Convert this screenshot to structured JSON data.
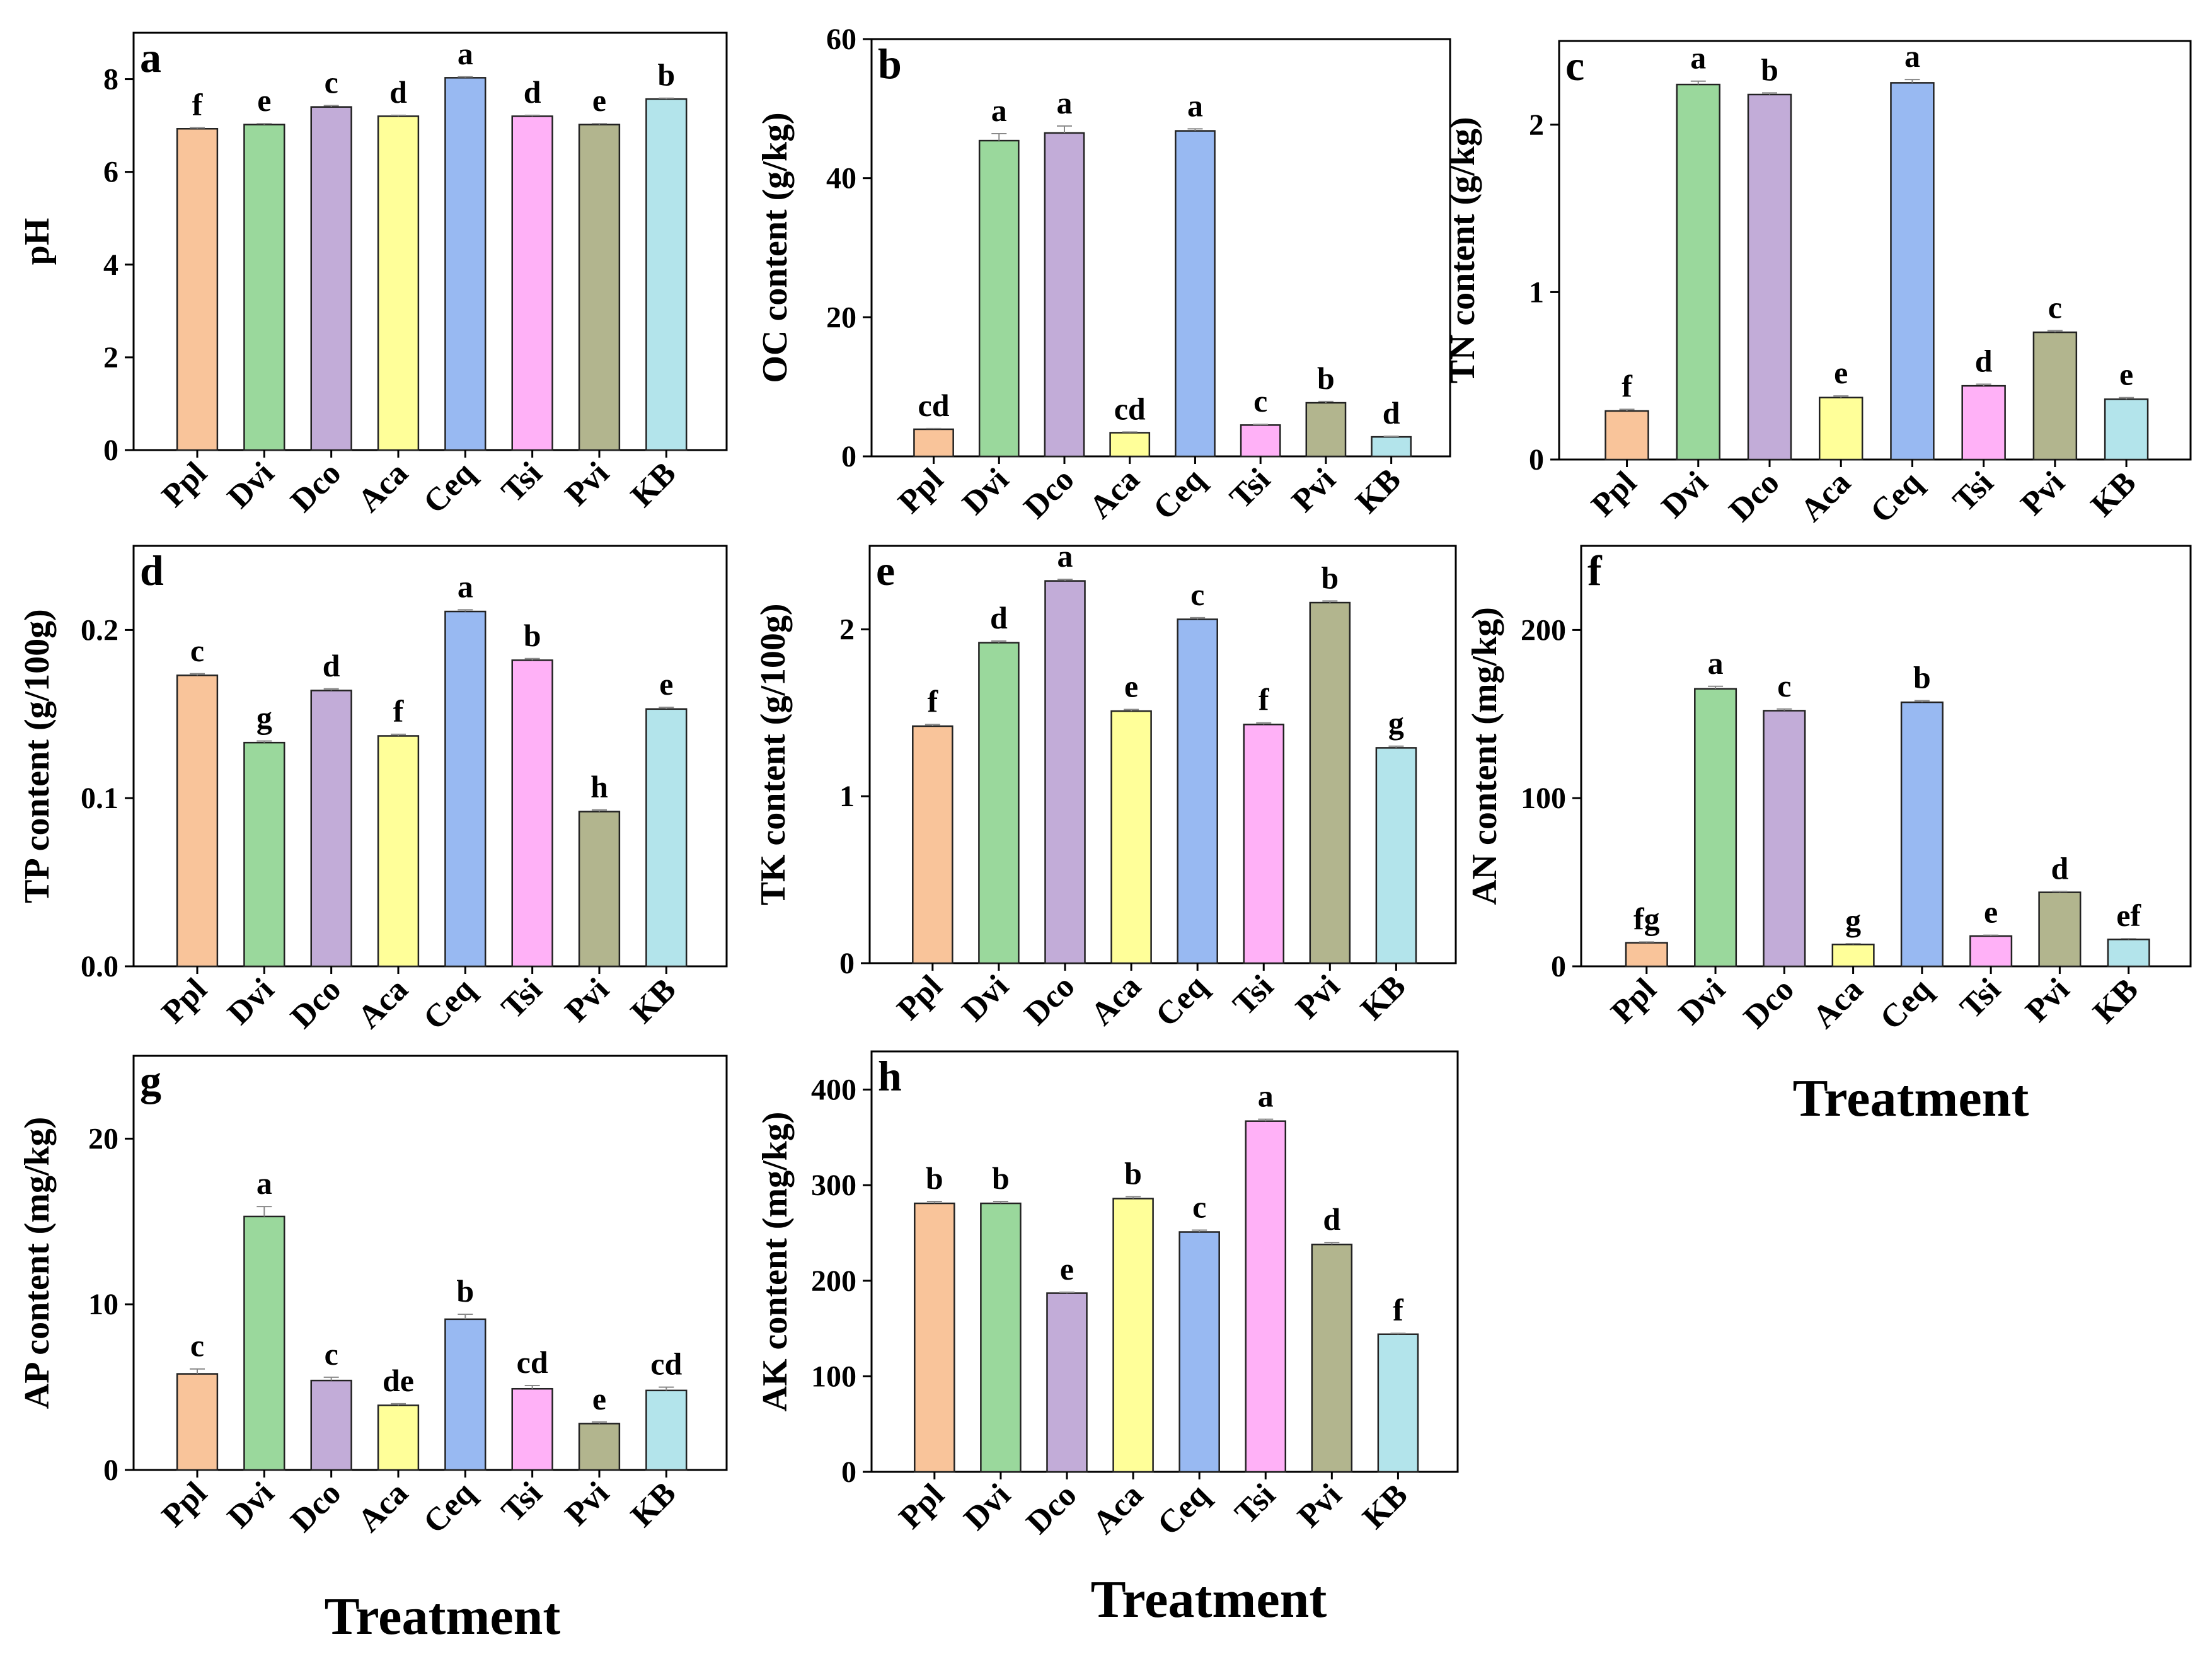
{
  "figure": {
    "x_axis_title": "Treatment",
    "colors": [
      "#f9c49a",
      "#9ad89c",
      "#c2acd8",
      "#ffff99",
      "#98b9f2",
      "#ffb1f7",
      "#b2b58e",
      "#b3e4eb"
    ]
  },
  "chart_data": [
    {
      "panel": "a",
      "type": "bar",
      "ylabel": "pH",
      "ylim": [
        0,
        9
      ],
      "yticks": [
        "0",
        "2",
        "4",
        "6",
        "8"
      ],
      "ytick_values": [
        0,
        2,
        4,
        6,
        8
      ],
      "categories": [
        "Ppl",
        "Dvi",
        "Dco",
        "Aca",
        "Ceq",
        "Tsi",
        "Pvi",
        "KB"
      ],
      "values": [
        6.93,
        7.02,
        7.4,
        7.2,
        8.03,
        7.2,
        7.02,
        7.57
      ],
      "errors": [
        0.02,
        0.02,
        0.03,
        0.02,
        0.02,
        0.02,
        0.02,
        0.02
      ],
      "letters": [
        "f",
        "e",
        "c",
        "d",
        "a",
        "d",
        "e",
        "b"
      ],
      "show_xlabel": false
    },
    {
      "panel": "b",
      "type": "bar",
      "ylabel": "OC content (g/kg)",
      "ylim": [
        0,
        60
      ],
      "yticks": [
        "0",
        "20",
        "40",
        "60"
      ],
      "ytick_values": [
        0,
        20,
        40,
        60
      ],
      "categories": [
        "Ppl",
        "Dvi",
        "Dco",
        "Aca",
        "Ceq",
        "Tsi",
        "Pvi",
        "KB"
      ],
      "values": [
        3.9,
        45.4,
        46.5,
        3.4,
        46.8,
        4.5,
        7.7,
        2.8
      ],
      "errors": [
        0.1,
        1.0,
        1.0,
        0.1,
        0.3,
        0.1,
        0.2,
        0.1
      ],
      "letters": [
        "cd",
        "a",
        "a",
        "cd",
        "a",
        "c",
        "b",
        "d"
      ],
      "show_xlabel": false
    },
    {
      "panel": "c",
      "type": "bar",
      "ylabel": "TN content (g/kg)",
      "ylim": [
        0,
        2.5
      ],
      "yticks": [
        "0",
        "1",
        "2"
      ],
      "ytick_values": [
        0,
        1,
        2
      ],
      "categories": [
        "Ppl",
        "Dvi",
        "Dco",
        "Aca",
        "Ceq",
        "Tsi",
        "Pvi",
        "KB"
      ],
      "values": [
        0.29,
        2.24,
        2.18,
        0.37,
        2.25,
        0.44,
        0.76,
        0.36
      ],
      "errors": [
        0.01,
        0.02,
        0.01,
        0.01,
        0.02,
        0.01,
        0.01,
        0.01
      ],
      "letters": [
        "f",
        "a",
        "b",
        "e",
        "a",
        "d",
        "c",
        "e"
      ],
      "show_xlabel": true
    },
    {
      "panel": "d",
      "type": "bar",
      "ylabel": "TP content (g/100g)",
      "ylim": [
        0,
        0.25
      ],
      "yticks": [
        "0.0",
        "0.1",
        "0.2"
      ],
      "ytick_values": [
        0,
        0.1,
        0.2
      ],
      "categories": [
        "Ppl",
        "Dvi",
        "Dco",
        "Aca",
        "Ceq",
        "Tsi",
        "Pvi",
        "KB"
      ],
      "values": [
        0.173,
        0.133,
        0.164,
        0.137,
        0.211,
        0.182,
        0.092,
        0.153
      ],
      "errors": [
        0.001,
        0.001,
        0.001,
        0.001,
        0.001,
        0.001,
        0.001,
        0.001
      ],
      "letters": [
        "c",
        "g",
        "d",
        "f",
        "a",
        "b",
        "h",
        "e"
      ],
      "show_xlabel": false
    },
    {
      "panel": "e",
      "type": "bar",
      "ylabel": "TK content (g/100g)",
      "ylim": [
        0,
        2.5
      ],
      "yticks": [
        "0",
        "1",
        "2"
      ],
      "ytick_values": [
        0,
        1,
        2
      ],
      "categories": [
        "Ppl",
        "Dvi",
        "Dco",
        "Aca",
        "Ceq",
        "Tsi",
        "Pvi",
        "KB"
      ],
      "values": [
        1.42,
        1.92,
        2.29,
        1.51,
        2.06,
        1.43,
        2.16,
        1.29
      ],
      "errors": [
        0.01,
        0.01,
        0.01,
        0.01,
        0.01,
        0.01,
        0.01,
        0.01
      ],
      "letters": [
        "f",
        "d",
        "a",
        "e",
        "c",
        "f",
        "b",
        "g"
      ],
      "show_xlabel": false
    },
    {
      "panel": "f",
      "type": "bar",
      "ylabel": "AN content (mg/kg)",
      "ylim": [
        0,
        250
      ],
      "yticks": [
        "0",
        "100",
        "200"
      ],
      "ytick_values": [
        0,
        100,
        200
      ],
      "categories": [
        "Ppl",
        "Dvi",
        "Dco",
        "Aca",
        "Ceq",
        "Tsi",
        "Pvi",
        "KB"
      ],
      "values": [
        14,
        165,
        152,
        13,
        157,
        18,
        44,
        16
      ],
      "errors": [
        0.5,
        1.5,
        1.0,
        0.5,
        1.0,
        0.5,
        0.5,
        0.5
      ],
      "letters": [
        "fg",
        "a",
        "c",
        "g",
        "b",
        "e",
        "d",
        "ef"
      ],
      "show_xlabel": true
    },
    {
      "panel": "g",
      "type": "bar",
      "ylabel": "AP content (mg/kg)",
      "ylim": [
        0,
        25
      ],
      "yticks": [
        "0",
        "10",
        "20"
      ],
      "ytick_values": [
        0,
        10,
        20
      ],
      "categories": [
        "Ppl",
        "Dvi",
        "Dco",
        "Aca",
        "Ceq",
        "Tsi",
        "Pvi",
        "KB"
      ],
      "values": [
        5.8,
        15.3,
        5.4,
        3.9,
        9.1,
        4.9,
        2.8,
        4.8
      ],
      "errors": [
        0.3,
        0.6,
        0.2,
        0.1,
        0.3,
        0.2,
        0.1,
        0.2
      ],
      "letters": [
        "c",
        "a",
        "c",
        "de",
        "b",
        "cd",
        "e",
        "cd"
      ],
      "show_xlabel": true
    },
    {
      "panel": "h",
      "type": "bar",
      "ylabel": "AK content (mg/kg)",
      "ylim": [
        0,
        440
      ],
      "yticks": [
        "0",
        "100",
        "200",
        "300",
        "400"
      ],
      "ytick_values": [
        0,
        100,
        200,
        300,
        400
      ],
      "categories": [
        "Ppl",
        "Dvi",
        "Dco",
        "Aca",
        "Ceq",
        "Tsi",
        "Pvi",
        "KB"
      ],
      "values": [
        281,
        281,
        187,
        286,
        251,
        367,
        238,
        144
      ],
      "errors": [
        2,
        2,
        1,
        2,
        2,
        2,
        2,
        1
      ],
      "letters": [
        "b",
        "b",
        "e",
        "b",
        "c",
        "a",
        "d",
        "f"
      ],
      "show_xlabel": true
    }
  ]
}
